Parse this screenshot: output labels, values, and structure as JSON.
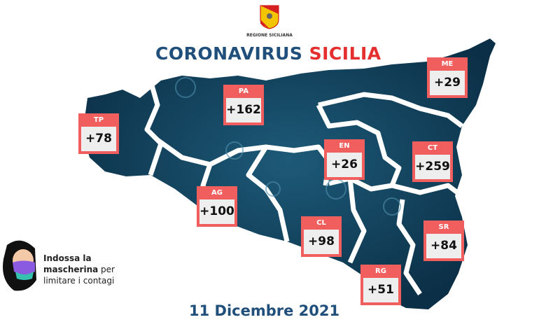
{
  "header": {
    "logo_text": "REGIONE SICILIANA",
    "title_part1": "CORONAVIRUS",
    "title_part2": "SICILIA"
  },
  "colors": {
    "title_blue": "#1f4f7a",
    "title_red": "#e52f2f",
    "box_red": "#f15e5e",
    "map_fill": "#0f3c57"
  },
  "provinces": [
    {
      "code": "TP",
      "value": "+78"
    },
    {
      "code": "PA",
      "value": "+162"
    },
    {
      "code": "ME",
      "value": "+29"
    },
    {
      "code": "EN",
      "value": "+26"
    },
    {
      "code": "CT",
      "value": "+259"
    },
    {
      "code": "AG",
      "value": "+100"
    },
    {
      "code": "CL",
      "value": "+98"
    },
    {
      "code": "SR",
      "value": "+84"
    },
    {
      "code": "RG",
      "value": "+51"
    }
  ],
  "advice": {
    "line1": "Indossa la",
    "line2_bold": "mascherina",
    "line2_rest": " per",
    "line3": "limitare i contagi"
  },
  "date": "11 Dicembre 2021"
}
